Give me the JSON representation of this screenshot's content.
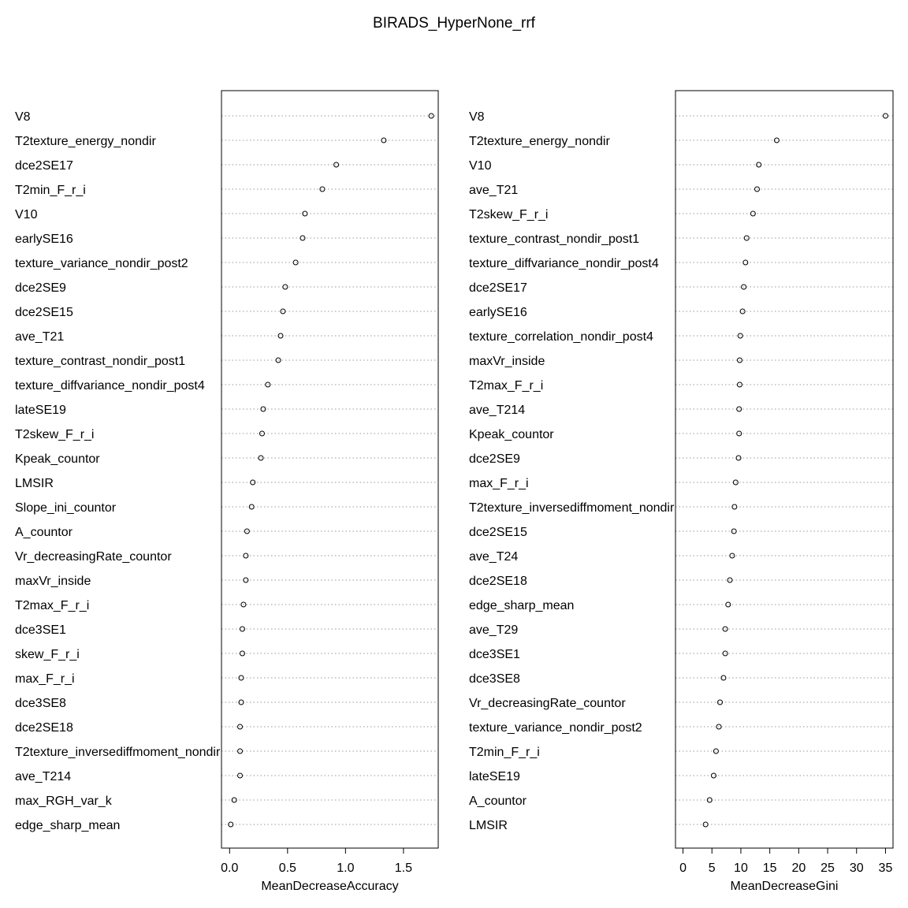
{
  "title": "BIRADS_HyperNone_rrf",
  "chart_data": [
    {
      "type": "dot",
      "xlabel": "MeanDecreaseAccuracy",
      "xlim": [
        -0.07,
        1.8
      ],
      "xticks": [
        "0.0",
        "0.5",
        "1.0",
        "1.5"
      ],
      "xtick_values": [
        0,
        0.5,
        1.0,
        1.5
      ],
      "grid": "dotted horizontal",
      "categories": [
        "V8",
        "T2texture_energy_nondir",
        "dce2SE17",
        "T2min_F_r_i",
        "V10",
        "earlySE16",
        "texture_variance_nondir_post2",
        "dce2SE9",
        "dce2SE15",
        "ave_T21",
        "texture_contrast_nondir_post1",
        "texture_diffvariance_nondir_post4",
        "lateSE19",
        "T2skew_F_r_i",
        "Kpeak_countor",
        "LMSIR",
        "Slope_ini_countor",
        "A_countor",
        "Vr_decreasingRate_countor",
        "maxVr_inside",
        "T2max_F_r_i",
        "dce3SE1",
        "skew_F_r_i",
        "max_F_r_i",
        "dce3SE8",
        "dce2SE18",
        "T2texture_inversediffmoment_nondir",
        "ave_T214",
        "max_RGH_var_k",
        "edge_sharp_mean"
      ],
      "values": [
        1.74,
        1.33,
        0.92,
        0.8,
        0.65,
        0.63,
        0.57,
        0.48,
        0.46,
        0.44,
        0.42,
        0.33,
        0.29,
        0.28,
        0.27,
        0.2,
        0.19,
        0.15,
        0.14,
        0.14,
        0.12,
        0.11,
        0.11,
        0.1,
        0.1,
        0.09,
        0.09,
        0.09,
        0.04,
        0.01
      ]
    },
    {
      "type": "dot",
      "xlabel": "MeanDecreaseGini",
      "xlim": [
        -1.3,
        36.3
      ],
      "xticks": [
        "0",
        "5",
        "10",
        "15",
        "20",
        "25",
        "30",
        "35"
      ],
      "xtick_values": [
        0,
        5,
        10,
        15,
        20,
        25,
        30,
        35
      ],
      "grid": "dotted horizontal",
      "categories": [
        "V8",
        "T2texture_energy_nondir",
        "V10",
        "ave_T21",
        "T2skew_F_r_i",
        "texture_contrast_nondir_post1",
        "texture_diffvariance_nondir_post4",
        "dce2SE17",
        "earlySE16",
        "texture_correlation_nondir_post4",
        "maxVr_inside",
        "T2max_F_r_i",
        "ave_T214",
        "Kpeak_countor",
        "dce2SE9",
        "max_F_r_i",
        "T2texture_inversediffmoment_nondir",
        "dce2SE15",
        "ave_T24",
        "dce2SE18",
        "edge_sharp_mean",
        "ave_T29",
        "dce3SE1",
        "dce3SE8",
        "Vr_decreasingRate_countor",
        "texture_variance_nondir_post2",
        "T2min_F_r_i",
        "lateSE19",
        "A_countor",
        "LMSIR"
      ],
      "values": [
        35.0,
        16.2,
        13.1,
        12.8,
        12.1,
        11.0,
        10.8,
        10.5,
        10.3,
        9.9,
        9.8,
        9.8,
        9.7,
        9.7,
        9.6,
        9.1,
        8.9,
        8.8,
        8.5,
        8.1,
        7.8,
        7.3,
        7.3,
        7.0,
        6.4,
        6.2,
        5.7,
        5.3,
        4.6,
        3.9
      ]
    }
  ]
}
